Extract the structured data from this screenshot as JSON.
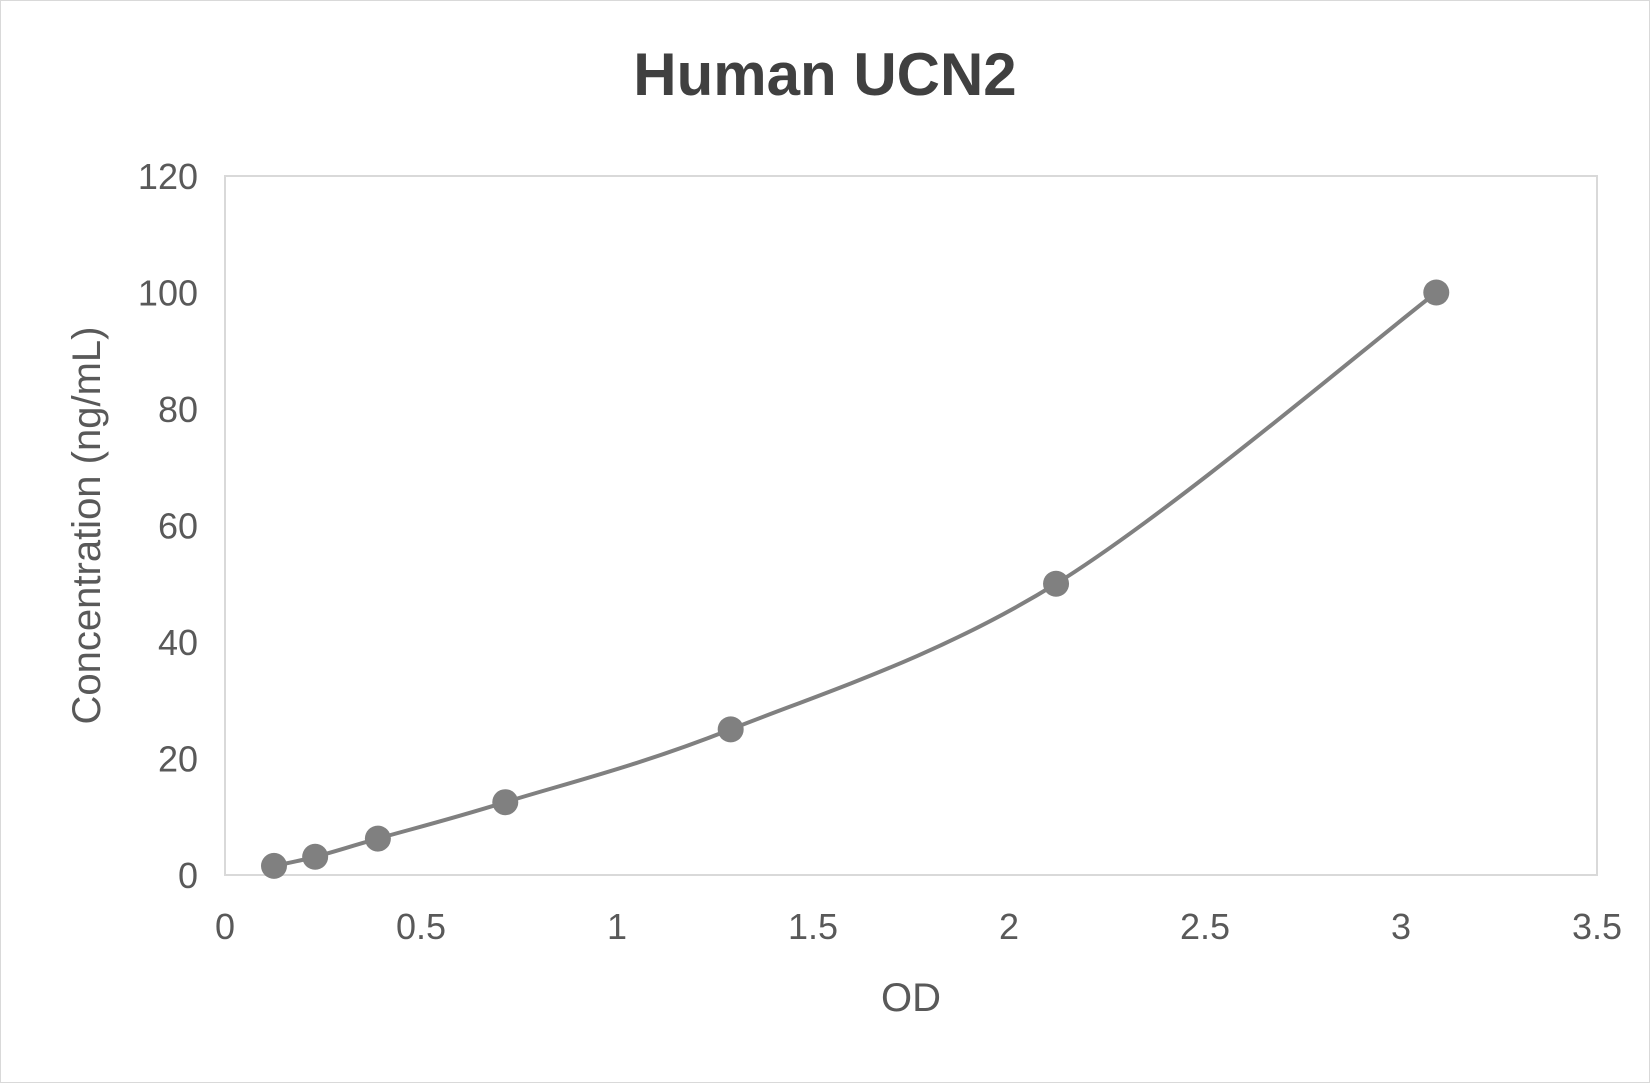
{
  "chart_data": {
    "type": "scatter",
    "title": "Human UCN2",
    "xlabel": "OD",
    "ylabel": "Concentration (ng/mL)",
    "xlim": [
      0,
      3.5
    ],
    "ylim": [
      0,
      120
    ],
    "x_ticks": [
      "0",
      "0.5",
      "1",
      "1.5",
      "2",
      "2.5",
      "3",
      "3.5"
    ],
    "y_ticks": [
      "0",
      "20",
      "40",
      "60",
      "80",
      "100",
      "120"
    ],
    "grid": false,
    "legend": "none",
    "line": "smoothed",
    "series": [
      {
        "x": [
          0.125,
          0.23,
          0.39,
          0.715,
          1.29,
          2.12,
          3.09
        ],
        "y": [
          1.5625,
          3.125,
          6.25,
          12.5,
          25,
          50,
          100
        ],
        "color": "#808080"
      }
    ]
  }
}
